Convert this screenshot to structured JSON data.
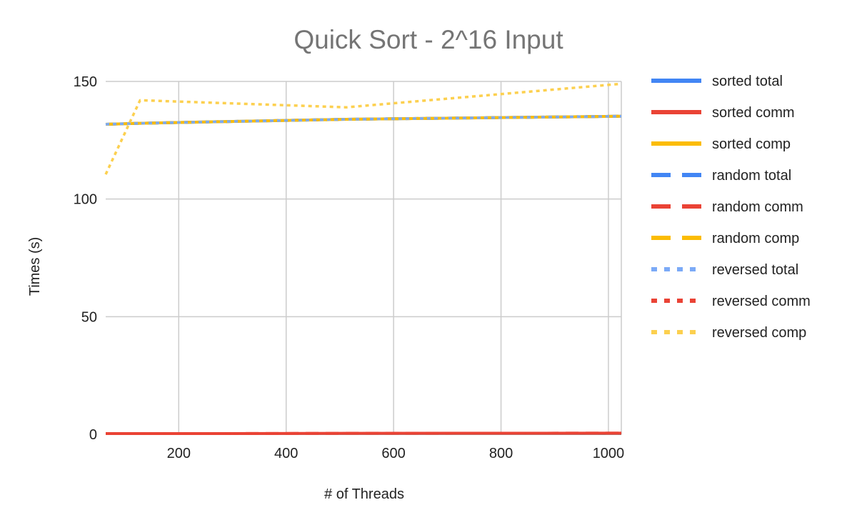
{
  "chart_data": {
    "type": "line",
    "title": "Quick Sort - 2^16 Input",
    "xlabel": "# of Threads",
    "ylabel": "Times (s)",
    "xlim": [
      64,
      1024
    ],
    "ylim": [
      0,
      150
    ],
    "x_ticks": [
      200,
      400,
      600,
      800,
      1000
    ],
    "y_ticks": [
      0,
      50,
      100,
      150
    ],
    "grid": true,
    "legend_position": "right",
    "x": [
      64,
      128,
      256,
      512,
      1024
    ],
    "series": [
      {
        "name": "sorted total",
        "color": "#4285f4",
        "dash": "solid",
        "values": [
          131.8,
          132.2,
          132.8,
          133.9,
          135.2
        ]
      },
      {
        "name": "sorted comm",
        "color": "#ea4335",
        "dash": "solid",
        "values": [
          0.3,
          0.3,
          0.3,
          0.4,
          0.5
        ]
      },
      {
        "name": "sorted comp",
        "color": "#fbbc04",
        "dash": "solid",
        "values": [
          131.8,
          132.2,
          132.8,
          133.9,
          135.2
        ]
      },
      {
        "name": "random total",
        "color": "#4285f4",
        "dash": "dashed",
        "values": [
          131.8,
          132.2,
          132.8,
          133.9,
          135.2
        ]
      },
      {
        "name": "random comm",
        "color": "#ea4335",
        "dash": "dashed",
        "values": [
          0.3,
          0.3,
          0.3,
          0.4,
          0.5
        ]
      },
      {
        "name": "random comp",
        "color": "#fbbc04",
        "dash": "dashed",
        "values": [
          131.8,
          132.2,
          132.8,
          133.9,
          135.2
        ]
      },
      {
        "name": "reversed total",
        "color": "#7baaf7",
        "dash": "dotted",
        "values": [
          131.8,
          132.2,
          132.8,
          133.9,
          135.2
        ]
      },
      {
        "name": "reversed comm",
        "color": "#ea4335",
        "dash": "dotted",
        "values": [
          0.3,
          0.3,
          0.3,
          0.4,
          0.5
        ]
      },
      {
        "name": "reversed comp",
        "color": "#fcd04f",
        "dash": "dotted",
        "values": [
          110.5,
          142,
          141,
          139,
          149
        ]
      }
    ]
  }
}
